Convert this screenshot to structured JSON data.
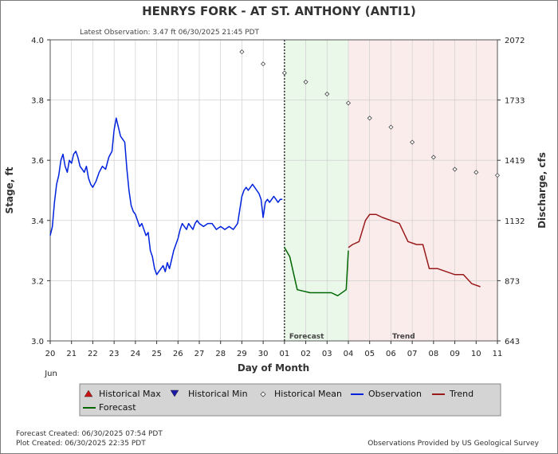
{
  "header": {
    "title": "HENRYS FORK - AT ST. ANTHONY  (ANTI1)",
    "latest_observation": "Latest Observation: 3.47 ft 06/30/2025 21:45 PDT"
  },
  "footer": {
    "forecast_created": "Forecast Created: 06/30/2025 07:54 PDT",
    "plot_created": "Plot Created: 06/30/2025 22:35 PDT",
    "provider": "Observations Provided by US Geological Survey"
  },
  "colors": {
    "observation": "#0022dd",
    "forecast": "#006600",
    "trend": "#991a1a",
    "forecast_zone": "#eaf8ea",
    "trend_zone": "#fbecec",
    "legend_bg": "#d4d4d4"
  },
  "chart_data": {
    "type": "line",
    "xlabel": "Day of Month",
    "ylabel": "Stage, ft",
    "y2label": "Discharge, cfs",
    "month_label": "Jun",
    "x_ticks": [
      "20",
      "21",
      "22",
      "23",
      "24",
      "25",
      "26",
      "27",
      "28",
      "29",
      "30",
      "01",
      "02",
      "03",
      "04",
      "05",
      "06",
      "07",
      "08",
      "09",
      "10",
      "11"
    ],
    "ylim": [
      3.0,
      4.0
    ],
    "y_ticks": [
      "3.0",
      "3.2",
      "3.4",
      "3.6",
      "3.8",
      "4.0"
    ],
    "y2_ticks": [
      "643",
      "873",
      "1132",
      "1419",
      "1733",
      "2072"
    ],
    "grid": true,
    "zones": [
      {
        "label": "Forecast",
        "from_day": 11,
        "to_day": 14
      },
      {
        "label": "Trend",
        "from_day": 14,
        "to_day": 21
      }
    ],
    "series": [
      {
        "name": "Observation",
        "x": [
          0,
          0.1,
          0.2,
          0.3,
          0.4,
          0.5,
          0.6,
          0.7,
          0.8,
          0.9,
          1.0,
          1.1,
          1.2,
          1.3,
          1.4,
          1.5,
          1.6,
          1.7,
          1.8,
          1.9,
          2.0,
          2.15,
          2.3,
          2.45,
          2.6,
          2.75,
          2.9,
          3.0,
          3.1,
          3.2,
          3.3,
          3.4,
          3.5,
          3.6,
          3.7,
          3.8,
          3.9,
          4.0,
          4.1,
          4.2,
          4.3,
          4.4,
          4.5,
          4.6,
          4.7,
          4.8,
          4.9,
          5.0,
          5.1,
          5.2,
          5.3,
          5.4,
          5.5,
          5.6,
          5.7,
          5.8,
          5.9,
          6.0,
          6.1,
          6.2,
          6.3,
          6.4,
          6.5,
          6.6,
          6.7,
          6.8,
          6.9,
          7.0,
          7.2,
          7.4,
          7.6,
          7.8,
          8.0,
          8.2,
          8.4,
          8.6,
          8.8,
          9.0,
          9.1,
          9.2,
          9.3,
          9.4,
          9.5,
          9.6,
          9.7,
          9.8,
          9.9,
          10.0,
          10.1,
          10.2,
          10.3,
          10.4,
          10.5,
          10.6,
          10.7,
          10.8,
          10.9
        ],
        "y": [
          3.35,
          3.38,
          3.46,
          3.52,
          3.55,
          3.6,
          3.62,
          3.58,
          3.56,
          3.6,
          3.59,
          3.62,
          3.63,
          3.61,
          3.58,
          3.57,
          3.56,
          3.58,
          3.54,
          3.52,
          3.51,
          3.53,
          3.56,
          3.58,
          3.57,
          3.61,
          3.63,
          3.7,
          3.74,
          3.71,
          3.68,
          3.67,
          3.66,
          3.57,
          3.5,
          3.45,
          3.43,
          3.42,
          3.4,
          3.38,
          3.39,
          3.37,
          3.35,
          3.36,
          3.3,
          3.28,
          3.24,
          3.22,
          3.23,
          3.24,
          3.25,
          3.23,
          3.26,
          3.24,
          3.27,
          3.3,
          3.32,
          3.34,
          3.37,
          3.39,
          3.38,
          3.37,
          3.39,
          3.38,
          3.37,
          3.39,
          3.4,
          3.39,
          3.38,
          3.39,
          3.39,
          3.37,
          3.38,
          3.37,
          3.38,
          3.37,
          3.39,
          3.48,
          3.5,
          3.51,
          3.5,
          3.51,
          3.52,
          3.51,
          3.5,
          3.49,
          3.47,
          3.41,
          3.46,
          3.47,
          3.46,
          3.47,
          3.48,
          3.47,
          3.46,
          3.47,
          3.47
        ]
      },
      {
        "name": "Forecast",
        "x": [
          11.0,
          11.25,
          11.6,
          12.2,
          12.6,
          13.2,
          13.5,
          13.9,
          14.0
        ],
        "y": [
          3.31,
          3.28,
          3.17,
          3.16,
          3.16,
          3.16,
          3.15,
          3.17,
          3.3
        ]
      },
      {
        "name": "Trend",
        "x": [
          14.0,
          14.2,
          14.5,
          14.8,
          15.0,
          15.3,
          15.6,
          16.0,
          16.4,
          16.8,
          17.2,
          17.5,
          17.8,
          18.2,
          18.6,
          19.0,
          19.4,
          19.8,
          20.2
        ],
        "y": [
          3.31,
          3.32,
          3.33,
          3.4,
          3.42,
          3.42,
          3.41,
          3.4,
          3.39,
          3.33,
          3.32,
          3.32,
          3.24,
          3.24,
          3.23,
          3.22,
          3.22,
          3.19,
          3.18
        ]
      },
      {
        "name": "Historical Mean",
        "x": [
          9,
          10,
          11,
          12,
          13,
          14,
          15,
          16,
          17,
          18,
          19,
          20,
          21
        ],
        "y": [
          3.96,
          3.92,
          3.89,
          3.86,
          3.82,
          3.79,
          3.74,
          3.71,
          3.66,
          3.61,
          3.57,
          3.56,
          3.55
        ]
      }
    ],
    "legend": [
      "Historical Max",
      "Historical Min",
      "Historical Mean",
      "Observation",
      "Trend",
      "Forecast"
    ]
  }
}
